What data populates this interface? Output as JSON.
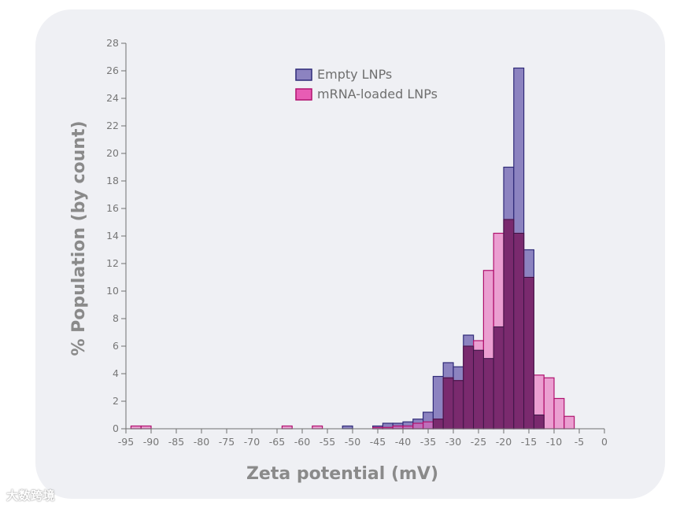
{
  "chart_data": {
    "type": "bar",
    "subtype": "overlapping-histogram",
    "title": "",
    "xlabel": "Zeta potential (mV)",
    "ylabel": "% Population (by count)",
    "xlim": [
      -95,
      0
    ],
    "ylim": [
      0,
      28
    ],
    "bin_width": 2,
    "x_ticks": [
      -95,
      -90,
      -85,
      -80,
      -75,
      -70,
      -65,
      -60,
      -55,
      -50,
      -45,
      -40,
      -35,
      -30,
      -25,
      -20,
      -15,
      -10,
      -5,
      0
    ],
    "x_tick_labels": [
      "-95",
      "-90",
      "-85",
      "-80",
      "-75",
      "-70",
      "-65",
      "-60",
      "-55",
      "-50",
      "-45",
      "-40",
      "-35",
      "-30",
      "-25",
      "-20",
      "-15",
      "-10",
      "-5",
      "0"
    ],
    "y_ticks": [
      0,
      2,
      4,
      6,
      8,
      10,
      12,
      14,
      16,
      18,
      20,
      22,
      24,
      26,
      28
    ],
    "y_tick_labels": [
      "0",
      "2",
      "4",
      "6",
      "8",
      "10",
      "12",
      "14",
      "16",
      "18",
      "20",
      "22",
      "24",
      "26",
      "28"
    ],
    "grid": false,
    "legend_position": "top-center",
    "series": [
      {
        "name": "Empty LNPs",
        "fill": "#8c83c0",
        "stroke": "#2f2a78",
        "bins": [
          {
            "x": -52,
            "value": 0.2
          },
          {
            "x": -46,
            "value": 0.2
          },
          {
            "x": -44,
            "value": 0.4
          },
          {
            "x": -42,
            "value": 0.4
          },
          {
            "x": -40,
            "value": 0.5
          },
          {
            "x": -38,
            "value": 0.7
          },
          {
            "x": -36,
            "value": 1.2
          },
          {
            "x": -34,
            "value": 3.8
          },
          {
            "x": -32,
            "value": 4.8
          },
          {
            "x": -30,
            "value": 4.5
          },
          {
            "x": -28,
            "value": 6.8
          },
          {
            "x": -26,
            "value": 5.7
          },
          {
            "x": -24,
            "value": 5.1
          },
          {
            "x": -22,
            "value": 7.4
          },
          {
            "x": -20,
            "value": 19.0
          },
          {
            "x": -18,
            "value": 26.2
          },
          {
            "x": -16,
            "value": 13.0
          },
          {
            "x": -14,
            "value": 1.0
          }
        ]
      },
      {
        "name": "mRNA-loaded LNPs",
        "fill": "#e85cb4",
        "stroke": "#b0126e",
        "bins": [
          {
            "x": -94,
            "value": 0.2
          },
          {
            "x": -92,
            "value": 0.2
          },
          {
            "x": -64,
            "value": 0.2
          },
          {
            "x": -58,
            "value": 0.2
          },
          {
            "x": -46,
            "value": 0.1
          },
          {
            "x": -44,
            "value": 0.1
          },
          {
            "x": -42,
            "value": 0.2
          },
          {
            "x": -40,
            "value": 0.2
          },
          {
            "x": -38,
            "value": 0.4
          },
          {
            "x": -36,
            "value": 0.5
          },
          {
            "x": -34,
            "value": 0.7
          },
          {
            "x": -32,
            "value": 3.7
          },
          {
            "x": -30,
            "value": 3.5
          },
          {
            "x": -28,
            "value": 6.0
          },
          {
            "x": -26,
            "value": 6.4
          },
          {
            "x": -24,
            "value": 11.5
          },
          {
            "x": -22,
            "value": 14.2
          },
          {
            "x": -20,
            "value": 15.2
          },
          {
            "x": -18,
            "value": 14.2
          },
          {
            "x": -16,
            "value": 11.0
          },
          {
            "x": -14,
            "value": 3.9
          },
          {
            "x": -12,
            "value": 3.7
          },
          {
            "x": -10,
            "value": 2.2
          },
          {
            "x": -8,
            "value": 0.9
          }
        ]
      }
    ]
  },
  "watermark": "大数跨境"
}
